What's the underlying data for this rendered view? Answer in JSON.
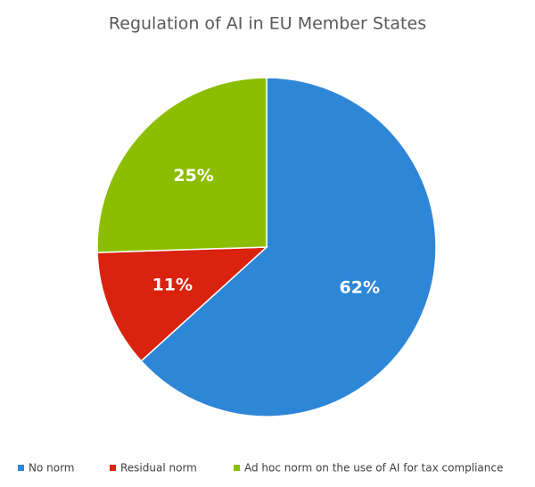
{
  "chart_data": {
    "type": "pie",
    "title": "Regulation of AI in EU Member States",
    "categories": [
      "No norm",
      "Residual norm",
      "Ad hoc norm on the use of AI for tax compliance"
    ],
    "values": [
      62,
      11,
      25
    ],
    "value_labels": [
      "62%",
      "11%",
      "25%"
    ],
    "colors": [
      "#2e86d7",
      "#d9230f",
      "#8cbd00"
    ]
  }
}
